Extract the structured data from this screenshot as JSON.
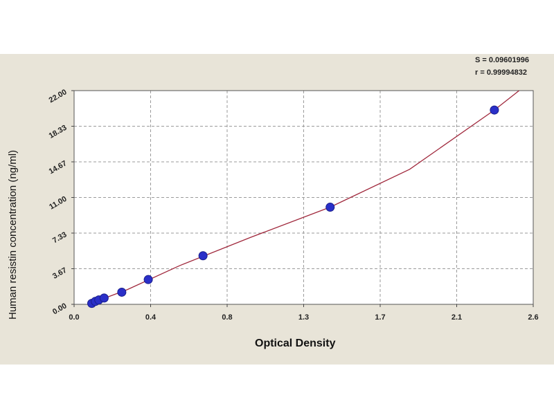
{
  "chart_data": {
    "type": "scatter",
    "xlabel": "Optical Density",
    "ylabel": "Human resistin concentration (ng/ml)",
    "xlim": [
      0.0,
      2.6
    ],
    "ylim": [
      0.0,
      22.0
    ],
    "x_ticks": [
      "0.0",
      "0.4",
      "0.8",
      "1.3",
      "1.7",
      "2.1",
      "2.6"
    ],
    "y_ticks": [
      "0.00",
      "3.67",
      "7.33",
      "11.00",
      "14.67",
      "18.33",
      "22.00"
    ],
    "grid": true,
    "stats": {
      "s_label": "S = 0.09601996",
      "r_label": "r = 0.99994832"
    },
    "series": [
      {
        "points": [
          {
            "x": 0.1,
            "y": 0.1
          },
          {
            "x": 0.12,
            "y": 0.3
          },
          {
            "x": 0.14,
            "y": 0.45
          },
          {
            "x": 0.17,
            "y": 0.65
          },
          {
            "x": 0.27,
            "y": 1.25
          },
          {
            "x": 0.42,
            "y": 2.55
          },
          {
            "x": 0.73,
            "y": 5.0
          },
          {
            "x": 1.45,
            "y": 10.0
          },
          {
            "x": 2.38,
            "y": 20.0
          }
        ],
        "color": "#2a2fc8"
      }
    ],
    "fit_curve": {
      "points": [
        {
          "x": 0.08,
          "y": 0.0
        },
        {
          "x": 0.3,
          "y": 1.5
        },
        {
          "x": 0.6,
          "y": 4.0
        },
        {
          "x": 1.0,
          "y": 6.9
        },
        {
          "x": 1.45,
          "y": 10.0
        },
        {
          "x": 1.9,
          "y": 13.9
        },
        {
          "x": 2.38,
          "y": 20.0
        },
        {
          "x": 2.52,
          "y": 22.0
        }
      ],
      "color": "#a0283c"
    }
  }
}
